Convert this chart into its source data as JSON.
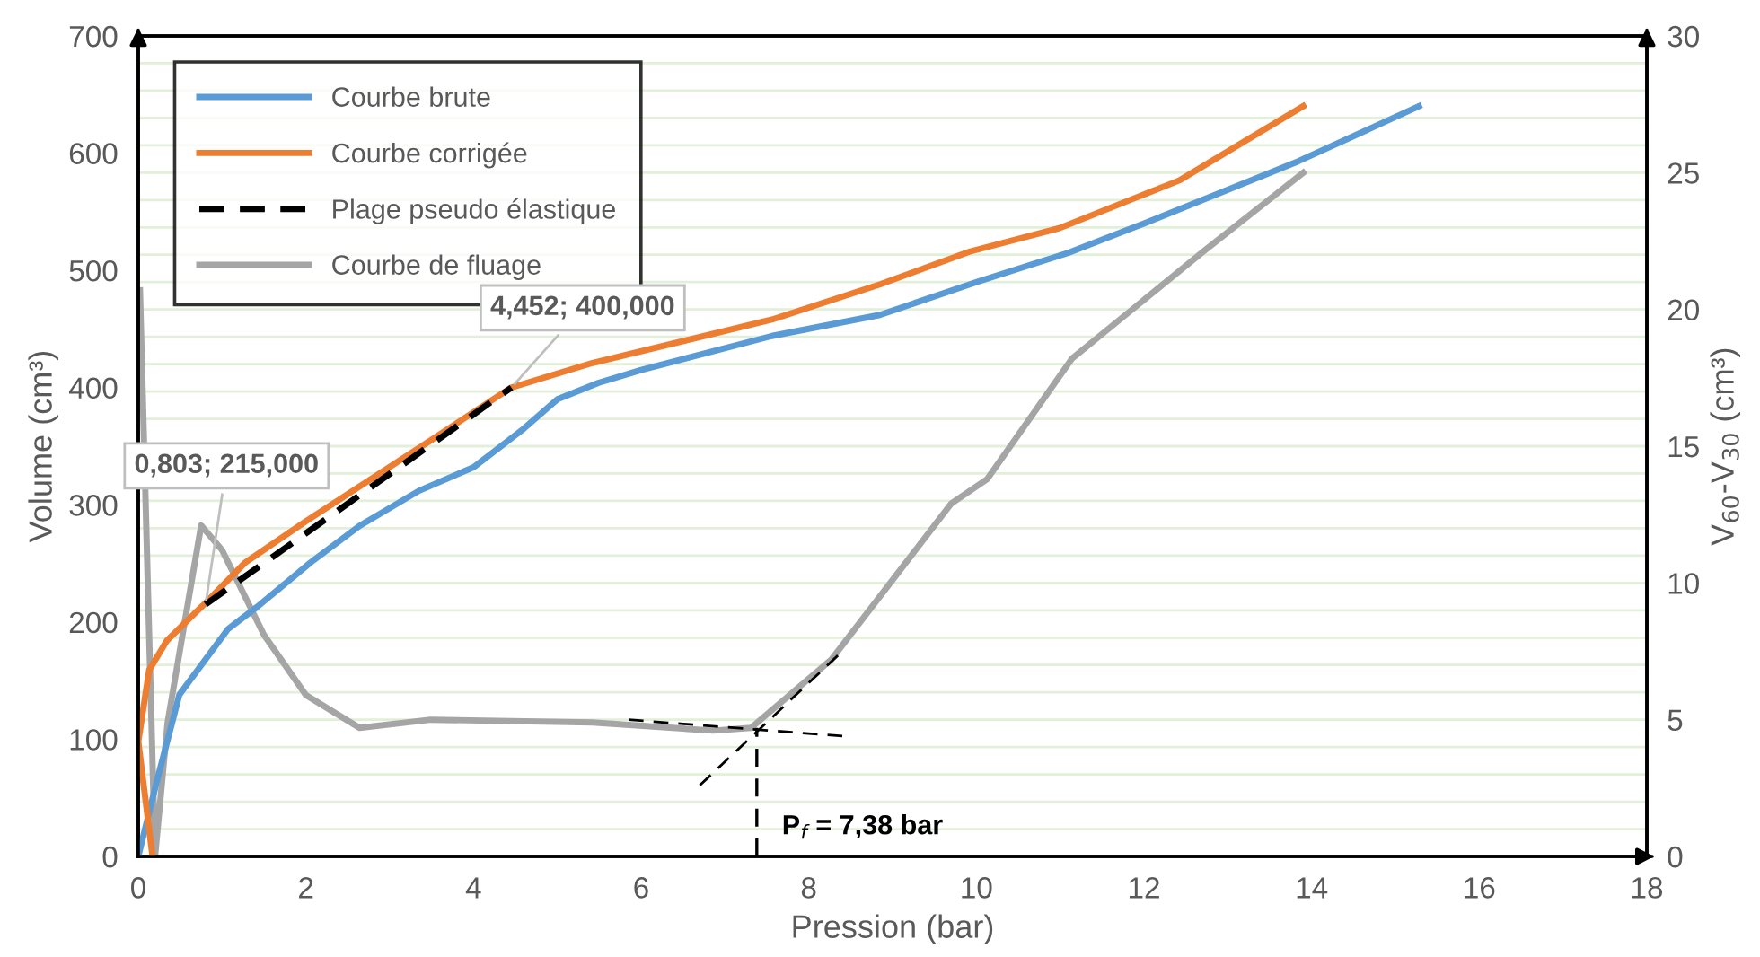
{
  "chart_data": {
    "type": "line",
    "xlabel": "Pression (bar)",
    "ylabel": "Volume (cm³)",
    "y2label": "V$_{60}$-V$_{30}$ (cm³)",
    "xlim": [
      0,
      18
    ],
    "xticks": [
      0,
      2,
      4,
      6,
      8,
      10,
      12,
      14,
      16,
      18
    ],
    "ylim": [
      0,
      700
    ],
    "yticks": [
      0,
      100,
      200,
      300,
      400,
      500,
      600,
      700
    ],
    "y2lim": [
      0,
      30
    ],
    "y2ticks": [
      0,
      {
        "value": 1,
        "label": null
      },
      {
        "value": 2,
        "label": null
      },
      {
        "value": 3,
        "label": null
      },
      {
        "value": 4,
        "label": null
      },
      5,
      {
        "value": 6,
        "label": null
      },
      {
        "value": 7,
        "label": null
      },
      {
        "value": 8,
        "label": null
      },
      {
        "value": 9,
        "label": null
      },
      10,
      {
        "value": 11,
        "label": null
      },
      {
        "value": 12,
        "label": null
      },
      {
        "value": 13,
        "label": null
      },
      {
        "value": 14,
        "label": null
      },
      15,
      {
        "value": 16,
        "label": null
      },
      {
        "value": 17,
        "label": null
      },
      {
        "value": 18,
        "label": null
      },
      {
        "value": 19,
        "label": null
      },
      20,
      {
        "value": 21,
        "label": null
      },
      {
        "value": 22,
        "label": null
      },
      {
        "value": 23,
        "label": null
      },
      {
        "value": 24,
        "label": null
      },
      25,
      {
        "value": 26,
        "label": null
      },
      {
        "value": 27,
        "label": null
      },
      {
        "value": 28,
        "label": null
      },
      {
        "value": 29,
        "label": null
      },
      30
    ],
    "grid": "y2",
    "legend": "top left",
    "marker": "none",
    "line_style": "solid",
    "series": [
      {
        "name": "Courbe brute",
        "color": "#5b9bd5",
        "x": [
          0,
          0.21,
          0.49,
          1.07,
          1.42,
          2.06,
          2.64,
          3.35,
          4.0,
          4.2,
          4.6,
          5.0,
          5.49,
          6.0,
          7.56,
          8.85,
          10.0,
          11.1,
          12.0,
          13.84,
          15.28
        ],
        "values": [
          0,
          61,
          138,
          194,
          213,
          251,
          282,
          312,
          332,
          343,
          365,
          390,
          404,
          415,
          444,
          462,
          490,
          515,
          540,
          593,
          640
        ]
      },
      {
        "name": "Courbe corrigée",
        "color": "#ed7d31",
        "x": [
          0.17,
          0,
          0.13,
          0.34,
          0.64,
          0.77,
          1.28,
          2.0,
          3.49,
          4.45,
          5.42,
          7.56,
          8.85,
          9.92,
          10.99,
          12.43,
          13.9
        ],
        "values": [
          0,
          98,
          159,
          184,
          205,
          214,
          251,
          286,
          355,
          400,
          421,
          458,
          488,
          516,
          536,
          577,
          640
        ]
      },
      {
        "name": "Plage pseudo élastique",
        "color": "#000000",
        "line_style": "dashed",
        "x": [
          0.803,
          4.452
        ],
        "values": [
          215,
          400
        ]
      },
      {
        "name": "Courbe de fluage",
        "color": "#a5a5a5",
        "axis": "y2",
        "x": [
          0.02,
          0.2,
          0.35,
          0.75,
          1.0,
          1.5,
          2.0,
          2.64,
          3.49,
          5.42,
          6.86,
          7.31,
          8.27,
          9.7,
          10.13,
          11.14,
          12.7,
          13.9
        ],
        "values": [
          20.7,
          0,
          4.9,
          12.1,
          11.2,
          8.1,
          5.9,
          4.7,
          5.0,
          4.9,
          4.6,
          4.7,
          7.2,
          12.9,
          13.8,
          18.2,
          22.1,
          25.0
        ]
      },
      {
        "color": "#000000",
        "line_style": "dashed",
        "axis": "y2",
        "x": [
          5.85,
          8.4
        ],
        "values": [
          5.0,
          4.4
        ]
      },
      {
        "color": "#000000",
        "line_style": "dashed",
        "axis": "y2",
        "x": [
          6.7,
          8.4
        ],
        "values": [
          2.6,
          7.5
        ]
      }
    ],
    "ref_lines": [
      {
        "axis": "x",
        "value": 7.38,
        "label": "P$_{f}$ = 7,38 bar",
        "color": "#000000",
        "line_style": "dashed"
      }
    ],
    "annotations": [
      {
        "text": "0,803; 215,000",
        "x": 0.803,
        "y": 215
      },
      {
        "text": "4,452; 400,000",
        "x": 4.452,
        "y": 400
      }
    ]
  }
}
